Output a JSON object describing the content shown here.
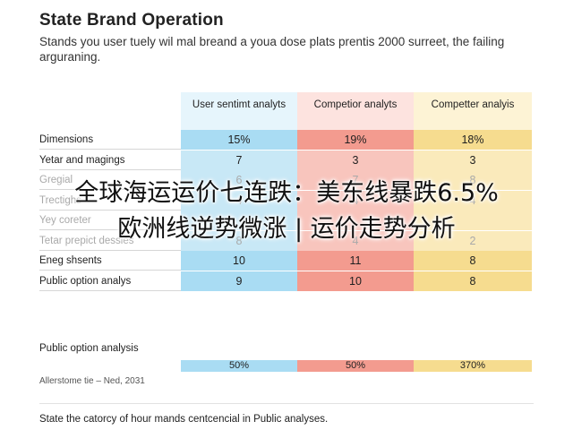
{
  "title": "State Brand Operation",
  "subtitle": "Stands you user tuely wil mal breand a youa dose plats prentis 2000 surreet, the failing arguraning.",
  "table": {
    "headers": [
      "User sentimt analyts",
      "Competior analyts",
      "Competter analyis"
    ],
    "rows": [
      {
        "label": "Dimensions",
        "values": [
          "15%",
          "19%",
          "18%"
        ],
        "style": "strong"
      },
      {
        "label": "Yetar and magings",
        "values": [
          "7",
          "3",
          "3"
        ],
        "style": "normal"
      },
      {
        "label": "Gregial",
        "values": [
          "6",
          "7",
          "8"
        ],
        "style": "faded"
      },
      {
        "label": "Trectighs",
        "values": [
          "4",
          "4",
          "4"
        ],
        "style": "faded"
      },
      {
        "label": "Yey coreter",
        "values": [
          "",
          "",
          ""
        ],
        "style": "faded"
      },
      {
        "label": "Tetar prepict dessies",
        "values": [
          "8",
          "4",
          "2"
        ],
        "style": "faded"
      },
      {
        "label": "Eneg shsents",
        "values": [
          "10",
          "11",
          "8"
        ],
        "style": "strong"
      },
      {
        "label": "Public option analys",
        "values": [
          "9",
          "10",
          "8"
        ],
        "style": "strong"
      }
    ]
  },
  "section2": {
    "label": "Public option analysis",
    "values": [
      "50%",
      "50%",
      "370%"
    ],
    "note": "Allerstome tie – Ned, 2031"
  },
  "footer": "State the catorcy of hour mands centcencial in Public analyses.",
  "overlay": {
    "line1": "全球海运运价七连跌：美东线暴跌6.5%",
    "line2": "欧洲线逆势微涨 | 运价走势分析"
  }
}
